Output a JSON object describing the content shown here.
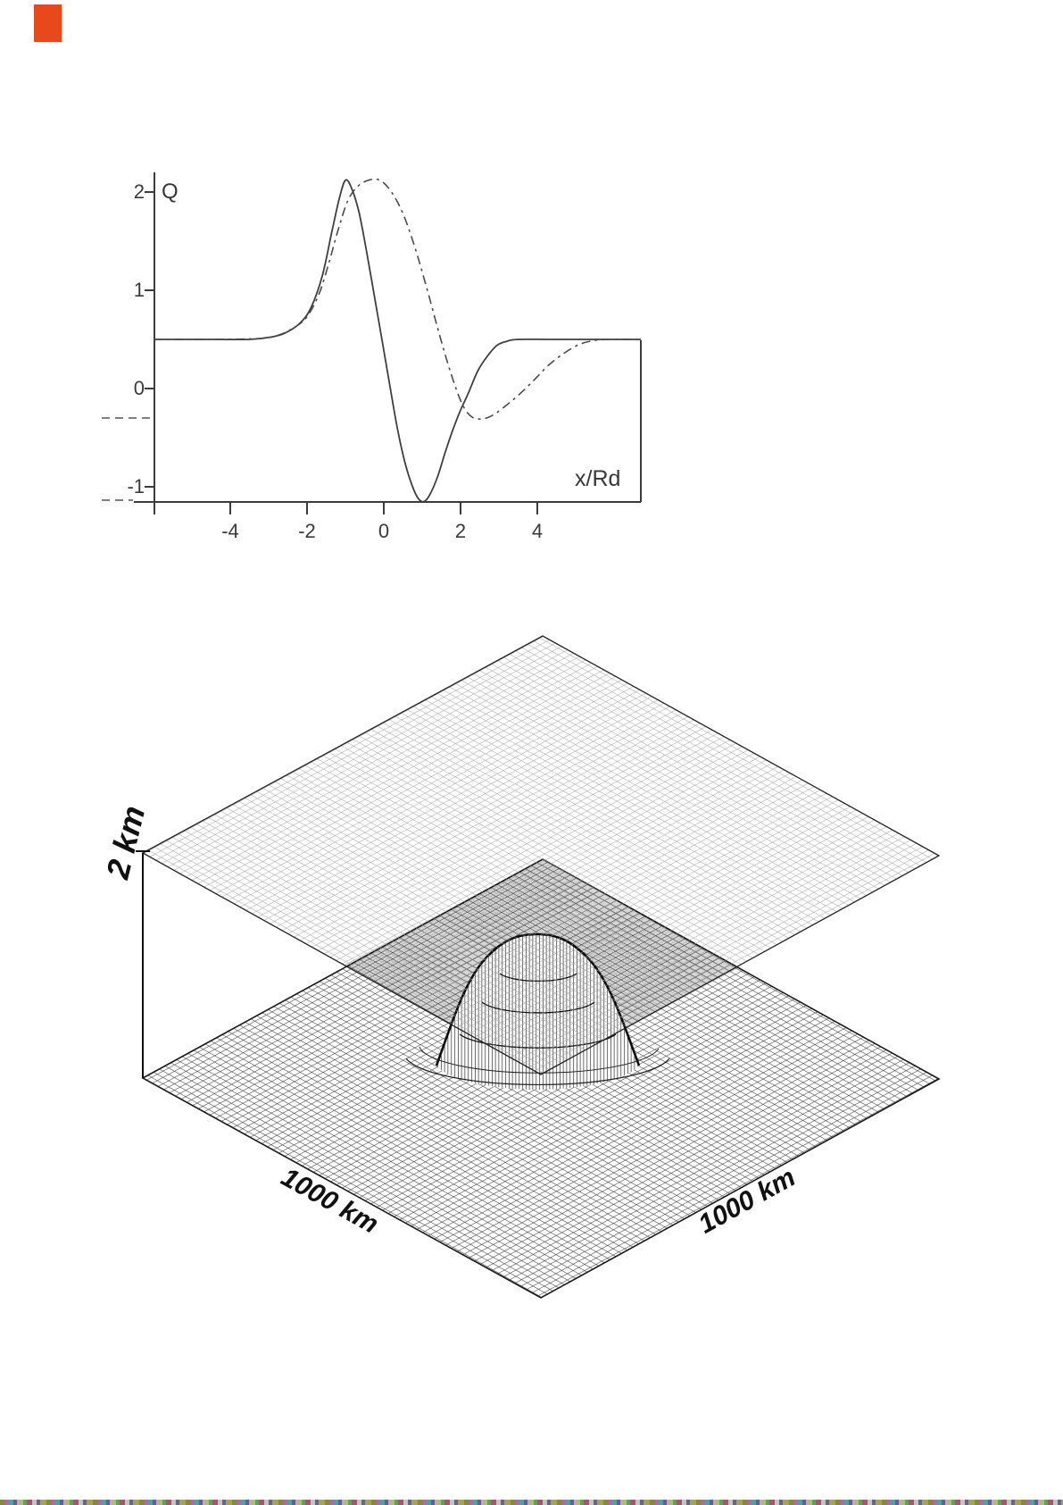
{
  "page": {
    "background": "#ffffff",
    "marker_color": "#e8491c"
  },
  "chart_data": [
    {
      "type": "line",
      "title": "",
      "xlabel": "x/Rd",
      "ylabel": "Q",
      "xlim": [
        -6.0,
        6.7
      ],
      "ylim": [
        -1.15,
        2.2
      ],
      "grid": false,
      "x_ticks": [
        "-4",
        "-2",
        "0",
        "2",
        "4"
      ],
      "x_tick_values": [
        -4,
        -2,
        0,
        2,
        4
      ],
      "y_ticks": [
        "2",
        "1",
        "0",
        "-1"
      ],
      "y_tick_values": [
        2,
        1,
        0,
        -1
      ],
      "baseline_value": 0.5,
      "annotations": {
        "dashed_marker_level": -0.3,
        "solid_marker_level": -1.15
      },
      "series": [
        {
          "name": "solid",
          "style": "solid",
          "color": "#3f3f3f",
          "points": [
            [
              -6.0,
              0.5
            ],
            [
              -4.5,
              0.5
            ],
            [
              -3.5,
              0.5
            ],
            [
              -3.0,
              0.52
            ],
            [
              -2.6,
              0.56
            ],
            [
              -2.2,
              0.66
            ],
            [
              -1.9,
              0.82
            ],
            [
              -1.6,
              1.15
            ],
            [
              -1.35,
              1.6
            ],
            [
              -1.15,
              1.95
            ],
            [
              -1.0,
              2.12
            ],
            [
              -0.85,
              2.05
            ],
            [
              -0.65,
              1.8
            ],
            [
              -0.45,
              1.4
            ],
            [
              -0.25,
              0.95
            ],
            [
              -0.05,
              0.5
            ],
            [
              0.15,
              0.05
            ],
            [
              0.35,
              -0.4
            ],
            [
              0.55,
              -0.75
            ],
            [
              0.75,
              -1.0
            ],
            [
              0.9,
              -1.12
            ],
            [
              1.05,
              -1.15
            ],
            [
              1.2,
              -1.08
            ],
            [
              1.4,
              -0.9
            ],
            [
              1.6,
              -0.65
            ],
            [
              1.8,
              -0.42
            ],
            [
              2.0,
              -0.22
            ],
            [
              2.2,
              -0.05
            ],
            [
              2.45,
              0.18
            ],
            [
              2.7,
              0.33
            ],
            [
              2.95,
              0.44
            ],
            [
              3.2,
              0.48
            ],
            [
              3.5,
              0.5
            ],
            [
              4.5,
              0.5
            ],
            [
              6.7,
              0.5
            ]
          ]
        },
        {
          "name": "dash-dot",
          "style": "dash-dot",
          "color": "#4a4a4a",
          "points": [
            [
              -6.0,
              0.5
            ],
            [
              -4.5,
              0.5
            ],
            [
              -3.2,
              0.51
            ],
            [
              -2.7,
              0.55
            ],
            [
              -2.3,
              0.63
            ],
            [
              -2.0,
              0.73
            ],
            [
              -1.7,
              0.95
            ],
            [
              -1.45,
              1.25
            ],
            [
              -1.2,
              1.6
            ],
            [
              -0.95,
              1.9
            ],
            [
              -0.7,
              2.05
            ],
            [
              -0.4,
              2.12
            ],
            [
              -0.1,
              2.12
            ],
            [
              0.2,
              2.0
            ],
            [
              0.5,
              1.78
            ],
            [
              0.8,
              1.45
            ],
            [
              1.1,
              1.05
            ],
            [
              1.4,
              0.62
            ],
            [
              1.65,
              0.28
            ],
            [
              1.9,
              -0.02
            ],
            [
              2.1,
              -0.2
            ],
            [
              2.3,
              -0.29
            ],
            [
              2.55,
              -0.31
            ],
            [
              2.8,
              -0.28
            ],
            [
              3.1,
              -0.2
            ],
            [
              3.5,
              -0.07
            ],
            [
              3.9,
              0.08
            ],
            [
              4.3,
              0.24
            ],
            [
              4.7,
              0.36
            ],
            [
              5.1,
              0.45
            ],
            [
              5.5,
              0.49
            ],
            [
              5.9,
              0.5
            ],
            [
              6.7,
              0.5
            ]
          ]
        }
      ]
    },
    {
      "type": "surface-3d",
      "description": "Flat lid surface 2 km above a bottom topography with a central Gaussian seamount, both shown as wireframe meshes",
      "z_label": "2 km",
      "x_label": "1000 km",
      "y_label": "1000 km",
      "lid_height_km": 2,
      "domain_km": 1000
    }
  ]
}
